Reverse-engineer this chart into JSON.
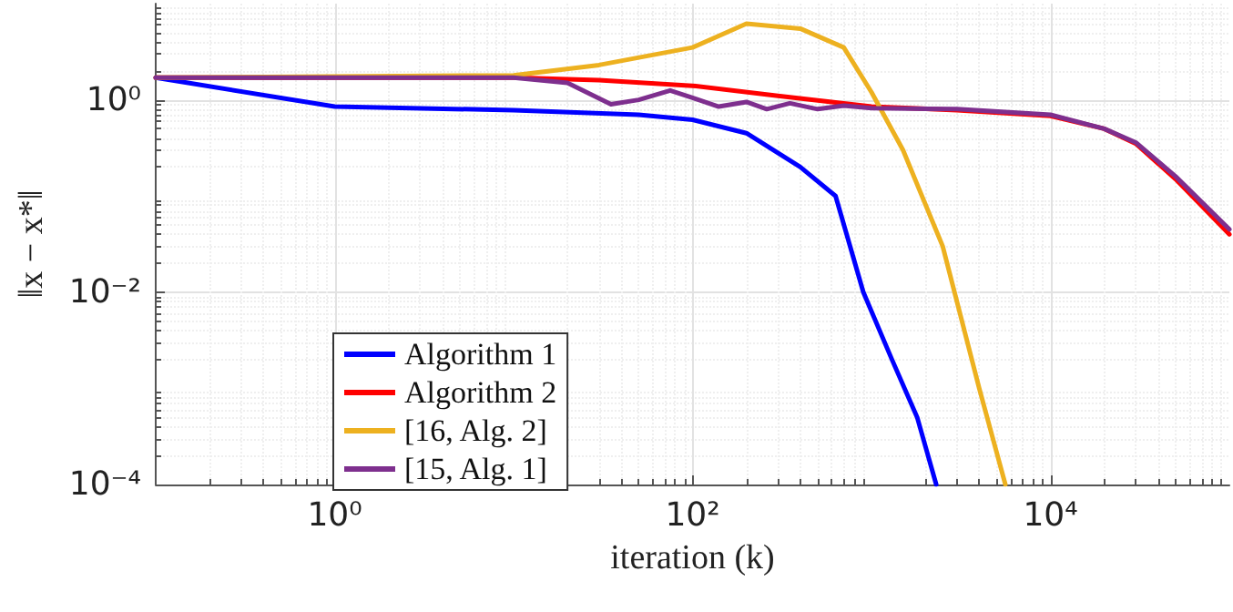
{
  "chart_data": {
    "type": "line",
    "xlabel": "iteration (k)",
    "ylabel": "‖x − x*‖",
    "log": "xy",
    "grid": true,
    "legend": "left",
    "line_style": "solid",
    "marker": "none",
    "xlim": [
      0.1,
      100000
    ],
    "ylim": [
      0.0001,
      10
    ],
    "xticks": [
      {
        "value": 1,
        "label": "10⁰"
      },
      {
        "value": 100,
        "label": "10²"
      },
      {
        "value": 10000,
        "label": "10⁴"
      }
    ],
    "yticks": [
      {
        "value": 0.0001,
        "label": "10⁻⁴"
      },
      {
        "value": 0.01,
        "label": "10⁻²"
      },
      {
        "value": 1,
        "label": "10⁰"
      }
    ],
    "series": [
      {
        "name": "Algorithm 1",
        "color": "#0000ff",
        "x": [
          0.1,
          1,
          10,
          50,
          100,
          200,
          400,
          630,
          900,
          1300,
          1800,
          2300
        ],
        "values": [
          1.7,
          0.85,
          0.78,
          0.7,
          0.62,
          0.45,
          0.2,
          0.1,
          0.01,
          0.002,
          0.0005,
          0.0001
        ]
      },
      {
        "name": "Algorithm 2",
        "color": "#ff0000",
        "x": [
          0.1,
          10,
          30,
          100,
          300,
          1000,
          3000,
          10000,
          20000,
          30000,
          50000,
          100000
        ],
        "values": [
          1.7,
          1.7,
          1.6,
          1.4,
          1.1,
          0.85,
          0.78,
          0.68,
          0.5,
          0.35,
          0.15,
          0.04
        ]
      },
      {
        "name": "[16, Alg. 2]",
        "color": "#edb120",
        "x": [
          0.1,
          10,
          30,
          100,
          200,
          400,
          700,
          1000,
          1500,
          2500,
          4000,
          5600
        ],
        "values": [
          1.7,
          1.8,
          2.3,
          3.5,
          6.2,
          5.5,
          3.5,
          1.2,
          0.3,
          0.03,
          0.001,
          0.0001
        ]
      },
      {
        "name": "[15, Alg. 1]",
        "color": "#7e2f8e",
        "x": [
          0.1,
          10,
          20,
          35,
          50,
          75,
          100,
          140,
          200,
          260,
          350,
          500,
          700,
          1000,
          3000,
          10000,
          20000,
          30000,
          50000,
          100000
        ],
        "values": [
          1.7,
          1.7,
          1.5,
          0.9,
          1.0,
          1.25,
          1.05,
          0.85,
          0.95,
          0.8,
          0.92,
          0.8,
          0.87,
          0.82,
          0.8,
          0.7,
          0.5,
          0.36,
          0.16,
          0.045
        ]
      }
    ]
  }
}
